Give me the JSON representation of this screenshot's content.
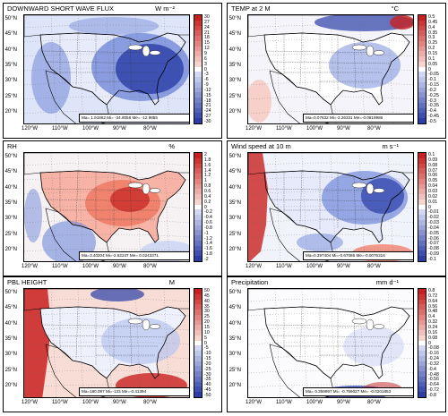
{
  "colors": {
    "ocean": "#f2f4fb",
    "land": "#ffffff",
    "red_strong": "#c8201e",
    "red_mid": "#f07a64",
    "blue_strong": "#2b3ea8",
    "blue_mid": "#7a8fdc",
    "border": "#000000"
  },
  "lat_labels": [
    "50°N",
    "45°N",
    "40°N",
    "35°N",
    "30°N",
    "25°N",
    "20°N"
  ],
  "lon_labels": [
    "120°W",
    "110°W",
    "100°W",
    "90°W",
    "80°W"
  ],
  "panels": [
    {
      "title": "DOWNWARD SHORT WAVE FLUX",
      "unit": "W m⁻²",
      "stats": "Ma= 1.91862 Mi= -34.8058 Me= -12.9855",
      "ticks": [
        "30",
        "27",
        "24",
        "21",
        "18",
        "15",
        "12",
        "9",
        "6",
        "3",
        "0",
        "-3",
        "-6",
        "-9",
        "-12",
        "-15",
        "-18",
        "-21",
        "-24",
        "-27",
        "-30"
      ],
      "pattern": "blue_east"
    },
    {
      "title": "TEMP at 2 M",
      "unit": "°C",
      "stats": "Ma=0.07632 Mi=-2.26331 Me=-0.0819986",
      "ticks": [
        "0.5",
        "0.45",
        "0.4",
        "0.35",
        "0.3",
        "0.25",
        "0.2",
        "0.15",
        "0.1",
        "0.05",
        "0",
        "-0.05",
        "-0.1",
        "-0.15",
        "-0.2",
        "-0.25",
        "-0.3",
        "-0.35",
        "-0.4",
        "-0.45",
        "-0.5"
      ],
      "pattern": "temp"
    },
    {
      "title": "RH",
      "unit": "%",
      "stats": "Ma=3.40204 Mi=-2.62247 Me= 0.0243371",
      "ticks": [
        "2",
        "1.8",
        "1.6",
        "1.4",
        "1.2",
        "1",
        "0.8",
        "0.6",
        "0.4",
        "0.2",
        "0",
        "-0.2",
        "-0.4",
        "-0.6",
        "-0.8",
        "-1",
        "-1.2",
        "-1.4",
        "-1.6",
        "-1.8",
        "-2"
      ],
      "pattern": "red_land"
    },
    {
      "title": "Wind speed at 10 m",
      "unit": "m s⁻¹",
      "stats": "Ma=0.397404 Mi=-0.67086 Me=-0.0076316",
      "ticks": [
        "0.1",
        "0.09",
        "0.08",
        "0.07",
        "0.06",
        "0.05",
        "0.04",
        "0.03",
        "0.02",
        "0.01",
        "0",
        "-0.01",
        "-0.02",
        "-0.03",
        "-0.04",
        "-0.05",
        "-0.06",
        "-0.07",
        "-0.08",
        "-0.09",
        "-0.1"
      ],
      "pattern": "wind"
    },
    {
      "title": "PBL HEIGHT",
      "unit": "M",
      "stats": "Ma=180.097 Mi=-133 Me=-0.41394",
      "ticks": [
        "50",
        "45",
        "40",
        "35",
        "30",
        "25",
        "20",
        "15",
        "10",
        "5",
        "0",
        "-5",
        "-10",
        "-15",
        "-20",
        "-25",
        "-30",
        "-35",
        "-40",
        "-45",
        "-50"
      ],
      "pattern": "pbl"
    },
    {
      "title": "Precipitation",
      "unit": "mm d⁻¹",
      "stats": "Ma= 0.359997 Mi= -0.769027 Me= -0.0201853",
      "ticks": [
        "0.8",
        "0.72",
        "0.64",
        "0.56",
        "0.48",
        "0.4",
        "0.32",
        "0.24",
        "0.16",
        "0.08",
        "0",
        "-0.08",
        "-0.16",
        "-0.24",
        "-0.32",
        "-0.4",
        "-0.48",
        "-0.56",
        "-0.64",
        "-0.72",
        "-0.8"
      ],
      "pattern": "precip"
    }
  ]
}
